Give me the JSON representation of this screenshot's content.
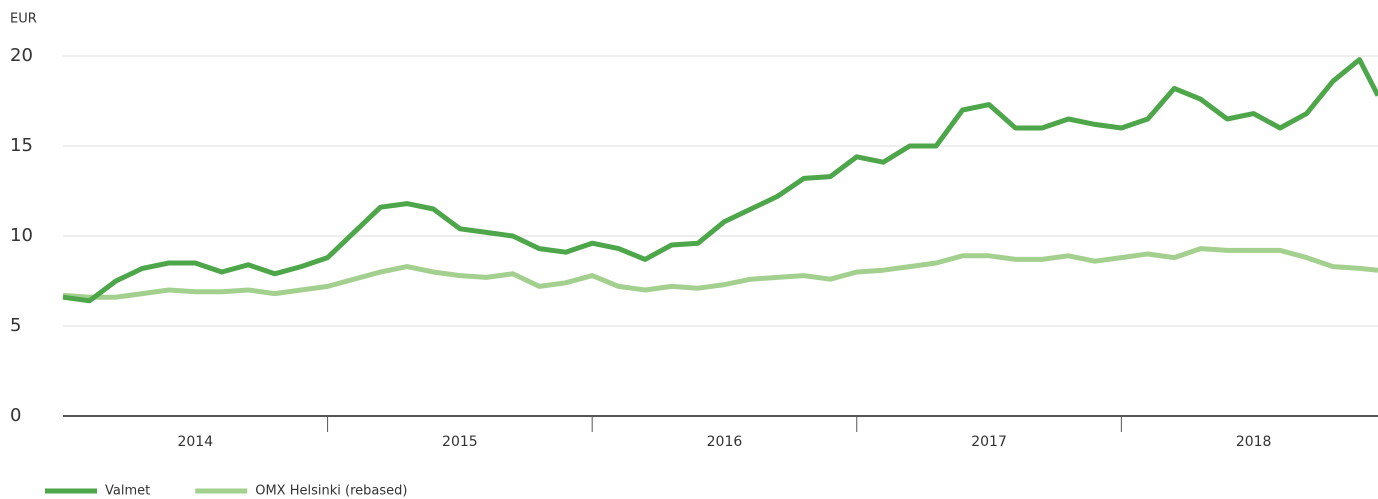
{
  "chart_data": {
    "type": "line",
    "y_label": "EUR",
    "x": [
      2014.0,
      2014.1,
      2014.2,
      2014.3,
      2014.4,
      2014.5,
      2014.6,
      2014.7,
      2014.8,
      2014.9,
      2015.0,
      2015.1,
      2015.2,
      2015.3,
      2015.4,
      2015.5,
      2015.6,
      2015.7,
      2015.8,
      2015.9,
      2016.0,
      2016.1,
      2016.2,
      2016.3,
      2016.4,
      2016.5,
      2016.6,
      2016.7,
      2016.8,
      2016.9,
      2017.0,
      2017.1,
      2017.2,
      2017.3,
      2017.4,
      2017.5,
      2017.6,
      2017.7,
      2017.8,
      2017.9,
      2018.0,
      2018.1,
      2018.2,
      2018.3,
      2018.4,
      2018.5,
      2018.6,
      2018.7,
      2018.8,
      2018.9,
      2018.97
    ],
    "series": [
      {
        "name": "Valmet",
        "color": "#4ea64a",
        "values": [
          6.6,
          6.4,
          7.5,
          8.2,
          8.5,
          8.5,
          8.0,
          8.4,
          7.9,
          8.3,
          8.8,
          10.2,
          11.6,
          11.8,
          11.5,
          10.4,
          10.2,
          10.0,
          9.3,
          9.1,
          9.6,
          9.3,
          8.7,
          9.5,
          9.6,
          10.8,
          11.5,
          12.2,
          13.2,
          13.3,
          14.4,
          14.1,
          15.0,
          15.0,
          17.0,
          17.3,
          16.0,
          16.0,
          16.5,
          16.2,
          16.0,
          16.5,
          18.2,
          17.6,
          16.5,
          16.8,
          16.0,
          16.8,
          18.6,
          19.8,
          17.8
        ]
      },
      {
        "name": "OMX Helsinki (rebased)",
        "color": "#a3d08f",
        "values": [
          6.7,
          6.6,
          6.6,
          6.8,
          7.0,
          6.9,
          6.9,
          7.0,
          6.8,
          7.0,
          7.2,
          7.6,
          8.0,
          8.3,
          8.0,
          7.8,
          7.7,
          7.9,
          7.2,
          7.4,
          7.8,
          7.2,
          7.0,
          7.2,
          7.1,
          7.3,
          7.6,
          7.7,
          7.8,
          7.6,
          8.0,
          8.1,
          8.3,
          8.5,
          8.9,
          8.9,
          8.7,
          8.7,
          8.9,
          8.6,
          8.8,
          9.0,
          8.8,
          9.3,
          9.2,
          9.2,
          9.2,
          8.8,
          8.3,
          8.2,
          8.1
        ]
      }
    ],
    "xlim": [
      2014.0,
      2018.97
    ],
    "xticks": [
      {
        "value": 2014.5,
        "label": "2014"
      },
      {
        "value": 2015.5,
        "label": "2015"
      },
      {
        "value": 2016.5,
        "label": "2016"
      },
      {
        "value": 2017.5,
        "label": "2017"
      },
      {
        "value": 2018.5,
        "label": "2018"
      }
    ],
    "ylim": [
      0,
      20
    ],
    "yticks": [
      0,
      5,
      10,
      15,
      20
    ],
    "grid": true,
    "legend": "bottom-left"
  }
}
